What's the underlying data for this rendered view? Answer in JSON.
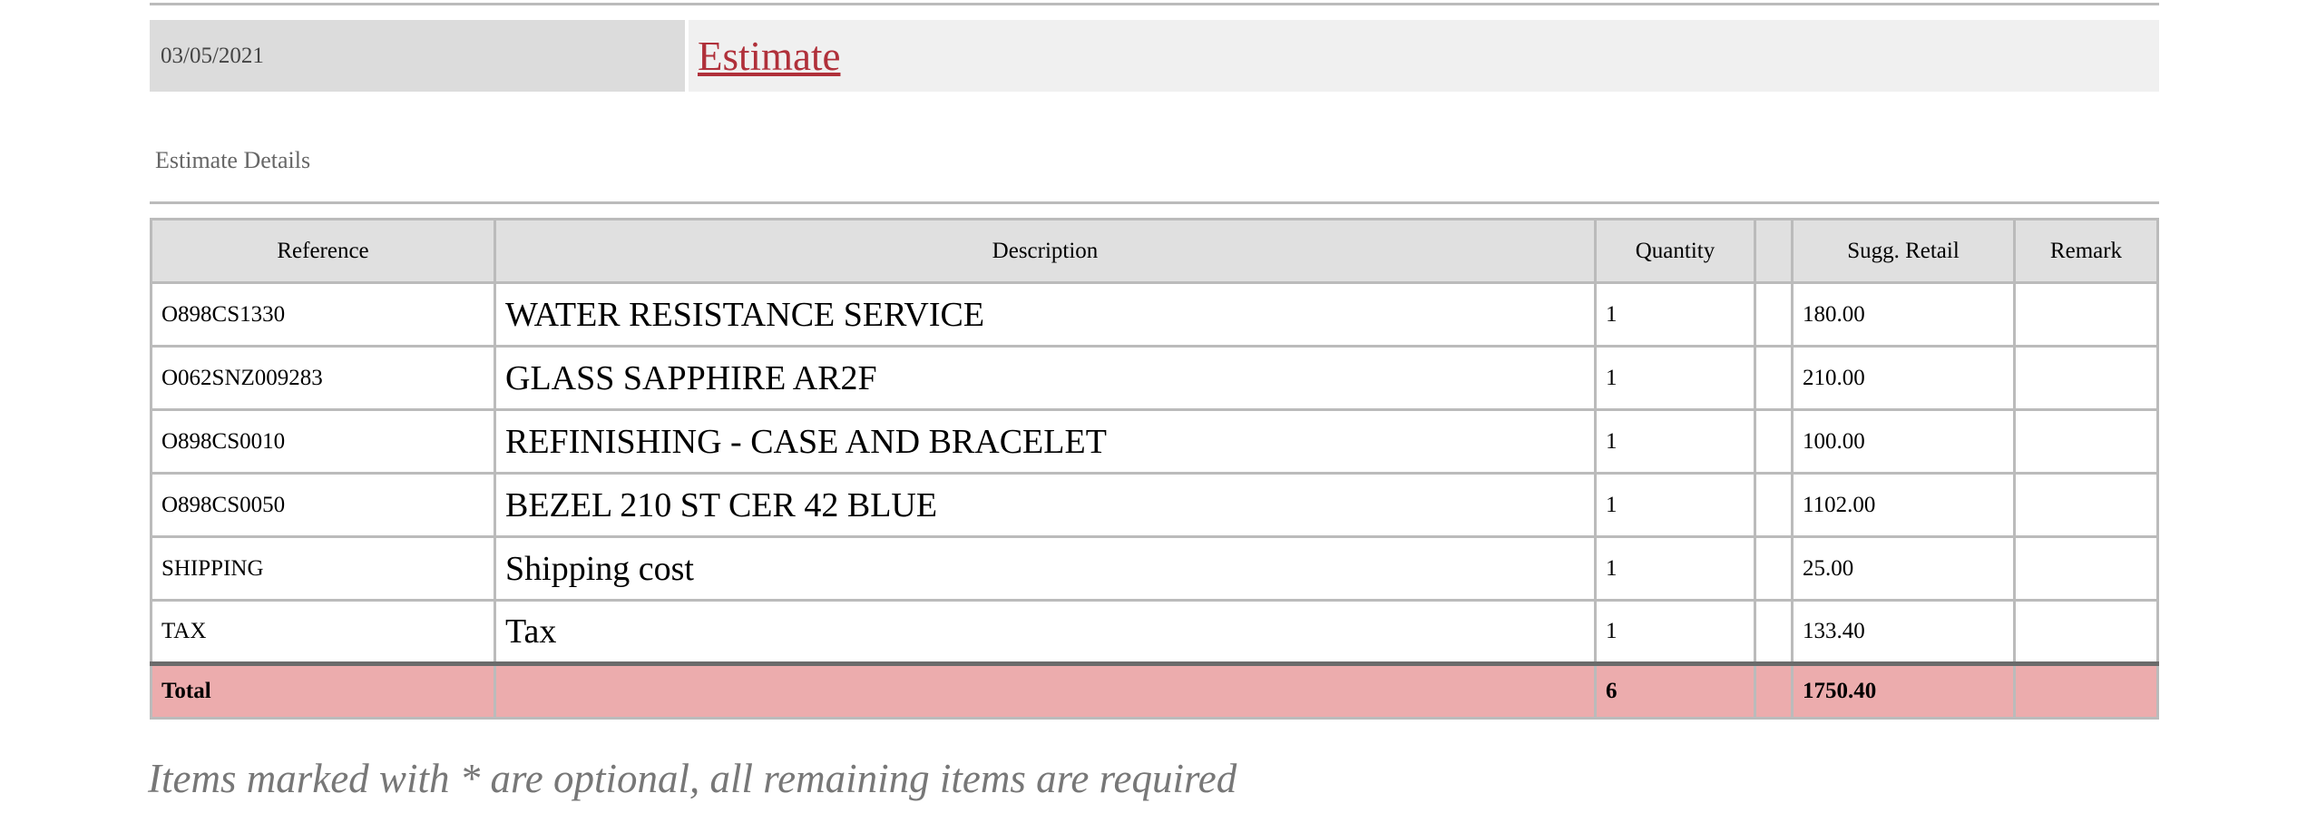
{
  "header": {
    "date": "03/05/2021",
    "title": "Estimate"
  },
  "section_title": "Estimate Details",
  "table": {
    "columns": [
      "Reference",
      "Description",
      "Quantity",
      "",
      "Sugg. Retail",
      "Remark"
    ],
    "rows": [
      {
        "reference": "O898CS1330",
        "description": "WATER RESISTANCE SERVICE",
        "quantity": "1",
        "extra": "",
        "retail": "180.00",
        "remark": ""
      },
      {
        "reference": "O062SNZ009283",
        "description": "GLASS SAPPHIRE AR2F",
        "quantity": "1",
        "extra": "",
        "retail": "210.00",
        "remark": ""
      },
      {
        "reference": "O898CS0010",
        "description": "REFINISHING - CASE AND BRACELET",
        "quantity": "1",
        "extra": "",
        "retail": "100.00",
        "remark": ""
      },
      {
        "reference": "O898CS0050",
        "description": "BEZEL 210 ST CER 42 BLUE",
        "quantity": "1",
        "extra": "",
        "retail": "1102.00",
        "remark": ""
      },
      {
        "reference": "SHIPPING",
        "description": "Shipping cost",
        "quantity": "1",
        "extra": "",
        "retail": "25.00",
        "remark": ""
      },
      {
        "reference": "TAX",
        "description": "Tax",
        "quantity": "1",
        "extra": "",
        "retail": "133.40",
        "remark": ""
      }
    ],
    "total": {
      "label": "Total",
      "quantity": "6",
      "retail": "1750.40"
    }
  },
  "note": "Items marked with * are optional, all remaining items are required",
  "colors": {
    "accent": "#b0303a",
    "total_bg": "#ecacad"
  }
}
